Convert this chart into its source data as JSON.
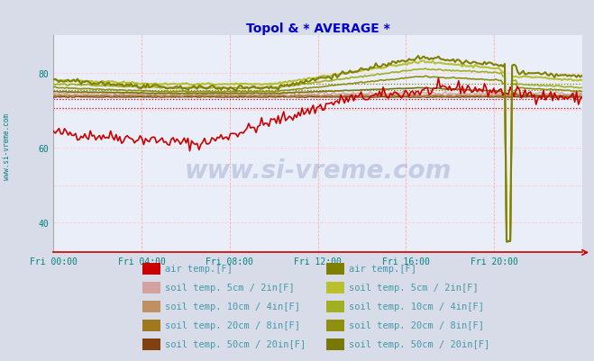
{
  "title": "Topol & * AVERAGE *",
  "title_color": "#0000cc",
  "bg_color": "#d8dce8",
  "plot_bg_color": "#eaeef8",
  "tick_color": "#008080",
  "watermark": "www.si-vreme.com",
  "xlim": [
    0,
    288
  ],
  "ylim": [
    32,
    90
  ],
  "yticks": [
    40,
    60,
    80
  ],
  "xtick_labels": [
    "Fri 00:00",
    "Fri 04:00",
    "Fri 08:00",
    "Fri 12:00",
    "Fri 16:00",
    "Fri 20:00"
  ],
  "xtick_positions": [
    0,
    48,
    96,
    144,
    192,
    240
  ],
  "ref_red": [
    70.5,
    73.0
  ],
  "ref_olive": [
    74.0,
    75.5,
    77.0
  ],
  "series1_color": "#cc0000",
  "soil5_color1": "#d4a0a0",
  "soil10_color1": "#c09060",
  "soil20_color1": "#a07820",
  "soil50_color1": "#804010",
  "series2_color": "#808000",
  "soil5_color2": "#b8c030",
  "soil10_color2": "#a0b020",
  "soil20_color2": "#909010",
  "soil50_color2": "#787808",
  "legend_text_color": "#4499aa",
  "items_left": [
    [
      "#cc0000",
      "air temp.[F]"
    ],
    [
      "#d4a0a0",
      "soil temp. 5cm / 2in[F]"
    ],
    [
      "#c09060",
      "soil temp. 10cm / 4in[F]"
    ],
    [
      "#a07820",
      "soil temp. 20cm / 8in[F]"
    ],
    [
      "#804010",
      "soil temp. 50cm / 20in[F]"
    ]
  ],
  "items_right": [
    [
      "#808000",
      "air temp.[F]"
    ],
    [
      "#b8c030",
      "soil temp. 5cm / 2in[F]"
    ],
    [
      "#a0b020",
      "soil temp. 10cm / 4in[F]"
    ],
    [
      "#909010",
      "soil temp. 20cm / 8in[F]"
    ],
    [
      "#787808",
      "soil temp. 50cm / 20in[F]"
    ]
  ]
}
